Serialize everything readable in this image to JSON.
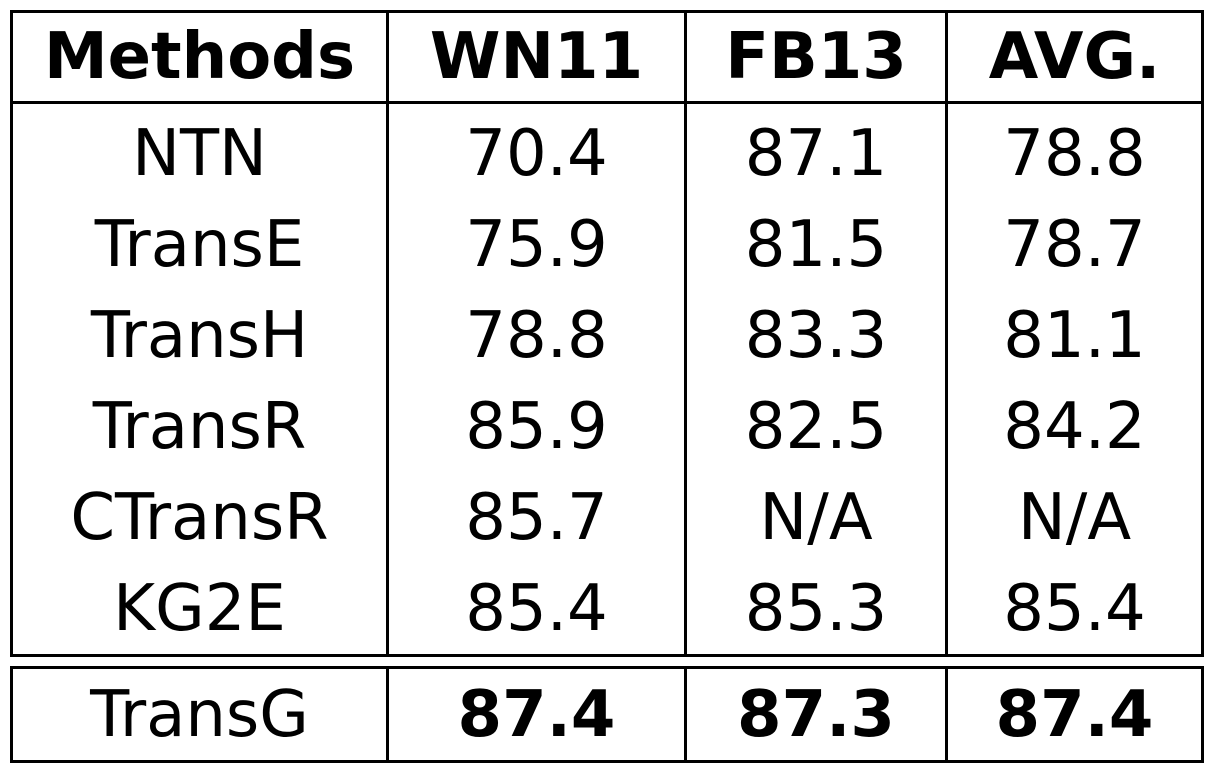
{
  "table": {
    "columns": [
      "Methods",
      "WN11",
      "FB13",
      "AVG."
    ],
    "rows": [
      [
        "NTN",
        "70.4",
        "87.1",
        "78.8"
      ],
      [
        "TransE",
        "75.9",
        "81.5",
        "78.7"
      ],
      [
        "TransH",
        "78.8",
        "83.3",
        "81.1"
      ],
      [
        "TransR",
        "85.9",
        "82.5",
        "84.2"
      ],
      [
        "CTransR",
        "85.7",
        "N/A",
        "N/A"
      ],
      [
        "KG2E",
        "85.4",
        "85.3",
        "85.4"
      ]
    ],
    "final_row": [
      "TransG",
      "87.4",
      "87.3",
      "87.4"
    ]
  }
}
